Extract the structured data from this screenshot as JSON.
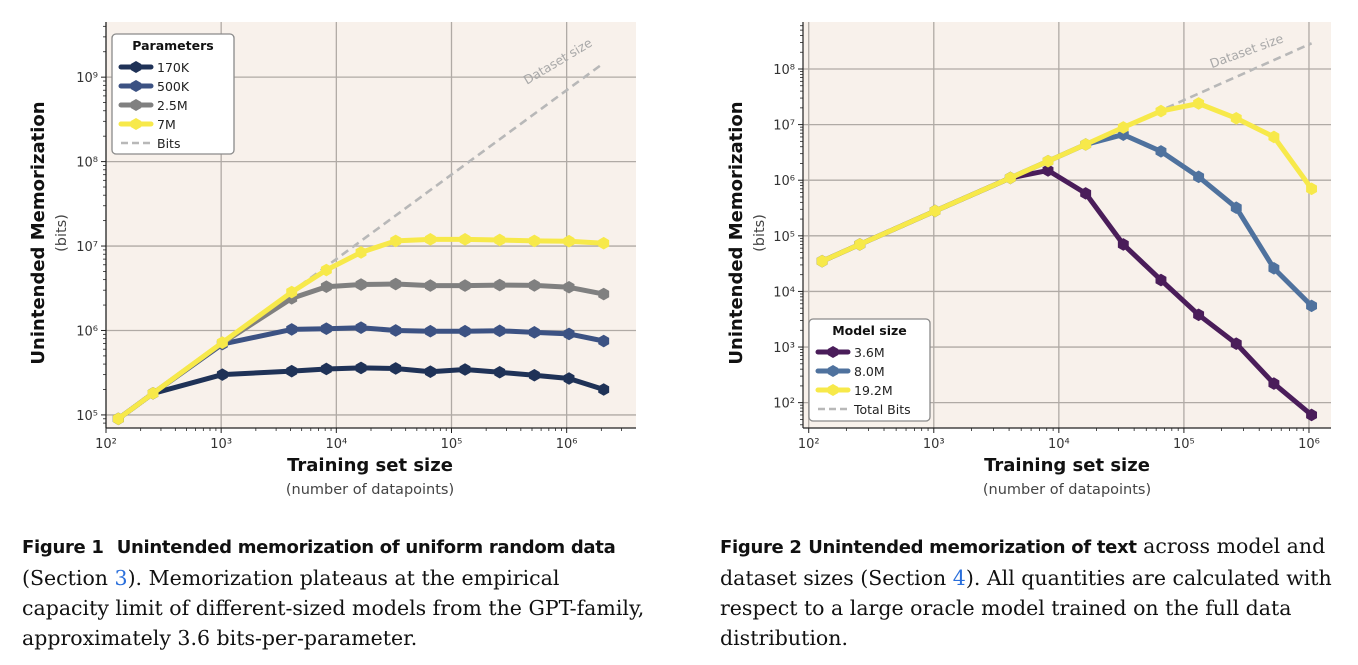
{
  "figures": [
    {
      "chart_data": {
        "type": "line",
        "xscale": "log",
        "yscale": "log",
        "xlabel": "Training set size",
        "xlabel_sub": "(number of datapoints)",
        "ylabel": "Unintended Memorization",
        "ylabel_sub": "(bits)",
        "xlim": [
          100,
          4000000
        ],
        "ylim": [
          70000,
          4500000000
        ],
        "x_ticks": [
          {
            "v": 100,
            "label": "10²"
          },
          {
            "v": 1000,
            "label": "10³"
          },
          {
            "v": 10000,
            "label": "10⁴"
          },
          {
            "v": 100000,
            "label": "10⁵"
          },
          {
            "v": 1000000,
            "label": "10⁶"
          }
        ],
        "y_ticks": [
          {
            "v": 100000,
            "label": "10⁵"
          },
          {
            "v": 1000000,
            "label": "10⁶"
          },
          {
            "v": 10000000,
            "label": "10⁷"
          },
          {
            "v": 100000000,
            "label": "10⁸"
          },
          {
            "v": 1000000000,
            "label": "10⁹"
          }
        ],
        "grid": true,
        "legend_title": "Parameters",
        "legend_position": "top-left",
        "reference_line": {
          "name": "Bits",
          "label": "Dataset size",
          "x": [
            256,
            2000000
          ],
          "y": [
            180000,
            1400000000
          ],
          "color": "#b8b8b8"
        },
        "series": [
          {
            "name": "170K",
            "color": "#1f3257",
            "x": [
              128,
              256,
              1024,
              4096,
              8192,
              16384,
              32768,
              65536,
              131072,
              262144,
              524288,
              1048576,
              2097152
            ],
            "y": [
              90000,
              180000,
              300000,
              330000,
              350000,
              360000,
              355000,
              325000,
              345000,
              320000,
              295000,
              270000,
              200000
            ]
          },
          {
            "name": "500K",
            "color": "#3c5283",
            "x": [
              128,
              256,
              1024,
              4096,
              8192,
              16384,
              32768,
              65536,
              131072,
              262144,
              524288,
              1048576,
              2097152
            ],
            "y": [
              90000,
              180000,
              690000,
              1030000,
              1050000,
              1080000,
              1000000,
              980000,
              980000,
              990000,
              950000,
              910000,
              750000
            ]
          },
          {
            "name": "2.5M",
            "color": "#808080",
            "x": [
              128,
              256,
              1024,
              4096,
              8192,
              16384,
              32768,
              65536,
              131072,
              262144,
              524288,
              1048576,
              2097152
            ],
            "y": [
              90000,
              180000,
              710000,
              2400000,
              3300000,
              3500000,
              3550000,
              3400000,
              3400000,
              3450000,
              3420000,
              3250000,
              2700000
            ]
          },
          {
            "name": "7M",
            "color": "#f7e94a",
            "x": [
              128,
              256,
              1024,
              4096,
              8192,
              16384,
              32768,
              65536,
              131072,
              262144,
              524288,
              1048576,
              2097152
            ],
            "y": [
              90000,
              180000,
              720000,
              2850000,
              5200000,
              8400000,
              11500000,
              12000000,
              12000000,
              11800000,
              11500000,
              11400000,
              10800000
            ]
          }
        ]
      },
      "caption": {
        "label": "Figure 1",
        "title": "Unintended memorization of uniform random data",
        "pre": "(Section ",
        "ref": "3",
        "post": ").  Memorization plateaus at the empirical capacity limit of different-sized models from the GPT-family, approximately 3.6 bits-per-parameter."
      }
    },
    {
      "chart_data": {
        "type": "line",
        "xscale": "log",
        "yscale": "log",
        "xlabel": "Training set size",
        "xlabel_sub": "(number of datapoints)",
        "ylabel": "Unintended Memorization",
        "ylabel_sub": "(bits)",
        "xlim": [
          90,
          1500000
        ],
        "ylim": [
          35,
          700000000
        ],
        "x_ticks": [
          {
            "v": 100,
            "label": "10²"
          },
          {
            "v": 1000,
            "label": "10³"
          },
          {
            "v": 10000,
            "label": "10⁴"
          },
          {
            "v": 100000,
            "label": "10⁵"
          },
          {
            "v": 1000000,
            "label": "10⁶"
          }
        ],
        "y_ticks": [
          {
            "v": 100,
            "label": "10²"
          },
          {
            "v": 1000,
            "label": "10³"
          },
          {
            "v": 10000,
            "label": "10⁴"
          },
          {
            "v": 100000,
            "label": "10⁵"
          },
          {
            "v": 1000000,
            "label": "10⁶"
          },
          {
            "v": 10000000,
            "label": "10⁷"
          },
          {
            "v": 100000000,
            "label": "10⁸"
          }
        ],
        "grid": true,
        "legend_title": "Model size",
        "legend_position": "lower-left",
        "reference_line": {
          "name": "Total Bits",
          "label": "Dataset size",
          "x": [
            128,
            1048576
          ],
          "y": [
            35000,
            290000000
          ],
          "color": "#b8b8b8"
        },
        "series": [
          {
            "name": "3.6M",
            "color": "#4a1d5a",
            "x": [
              128,
              256,
              1024,
              4096,
              8192,
              16384,
              32768,
              65536,
              131072,
              262144,
              524288,
              1048576
            ],
            "y": [
              35000,
              70000,
              280000,
              1100000,
              1500000,
              580000,
              70000,
              16000,
              3800,
              1150,
              220,
              60
            ]
          },
          {
            "name": "8.0M",
            "color": "#4f729e",
            "x": [
              128,
              256,
              1024,
              4096,
              8192,
              16384,
              32768,
              65536,
              131072,
              262144,
              524288,
              1048576
            ],
            "y": [
              35000,
              70000,
              280000,
              1100000,
              2200000,
              4400000,
              6600000,
              3300000,
              1150000,
              320000,
              26000,
              5500
            ]
          },
          {
            "name": "19.2M",
            "color": "#f7e94a",
            "x": [
              128,
              256,
              1024,
              4096,
              8192,
              16384,
              32768,
              65536,
              131072,
              262144,
              524288,
              1048576
            ],
            "y": [
              35000,
              70000,
              280000,
              1100000,
              2200000,
              4400000,
              8900000,
              17500000,
              24000000,
              13000000,
              6000000,
              700000
            ]
          }
        ]
      },
      "caption": {
        "label": "Figure 2",
        "title": "Unintended memorization of text",
        "pre": " across model and dataset sizes (Section ",
        "ref": "4",
        "post": "). All quantities are calculated with respect to a large oracle model trained on the full data distribution."
      }
    }
  ]
}
